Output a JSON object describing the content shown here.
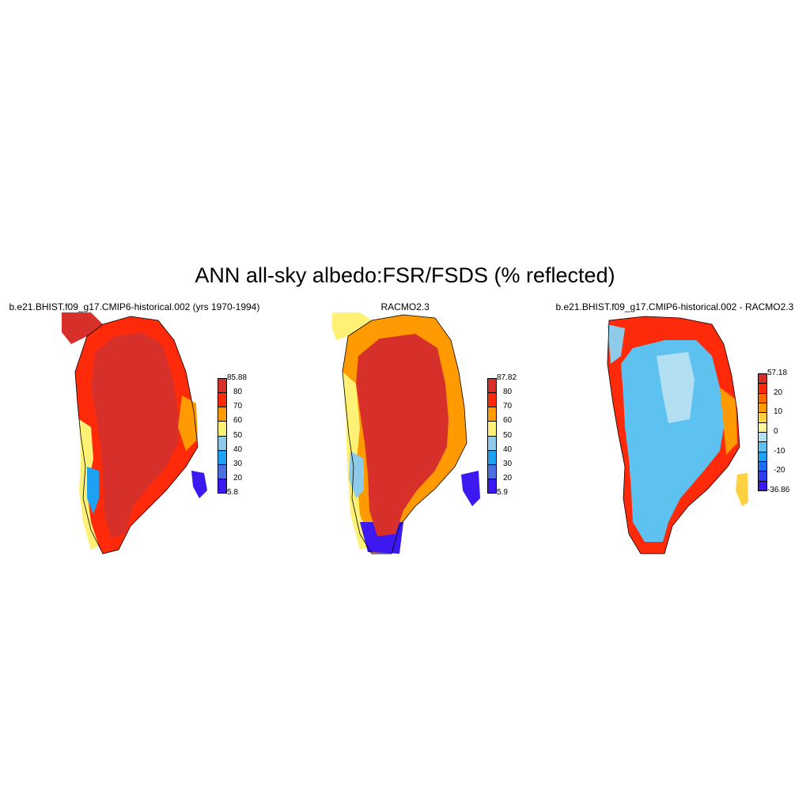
{
  "title": "ANN all-sky albedo:FSR/FSDS (% reflected)",
  "panels": [
    {
      "title": "b.e21.BHIST.f09_g17.CMIP6-historical.002 (yrs 1970-1994)",
      "colorbar": {
        "labels": [
          "85.88",
          "80",
          "70",
          "60",
          "50",
          "40",
          "30",
          "20",
          "5.8"
        ],
        "colors": [
          "#d7302b",
          "#ff2a0a",
          "#ff9a00",
          "#fff176",
          "#8ecbe8",
          "#1ea1f0",
          "#4a6fe0",
          "#3d18f0"
        ]
      },
      "fill": "#d7302b"
    },
    {
      "title": "RACMO2.3",
      "colorbar": {
        "labels": [
          "87.82",
          "80",
          "70",
          "60",
          "50",
          "40",
          "30",
          "20",
          "5.9"
        ],
        "colors": [
          "#d7302b",
          "#ff2a0a",
          "#ff9a00",
          "#fff176",
          "#8ecbe8",
          "#1ea1f0",
          "#4a6fe0",
          "#3d18f0"
        ]
      },
      "fill": "#d7302b"
    },
    {
      "title": "b.e21.BHIST.f09_g17.CMIP6-historical.002 - RACMO2.3",
      "colorbar": {
        "labels": [
          "57.18",
          "20",
          "10",
          "0",
          "-10",
          "-20",
          "-36.86"
        ],
        "colors": [
          "#d7302b",
          "#ff2a0a",
          "#ff6a00",
          "#ff9a00",
          "#ffd040",
          "#fff59a",
          "#b3dff2",
          "#5ec2f0",
          "#1ea1f0",
          "#1e6ef0",
          "#2f3ff0",
          "#3d18f0"
        ]
      },
      "fill": "#5ec2f0"
    }
  ]
}
